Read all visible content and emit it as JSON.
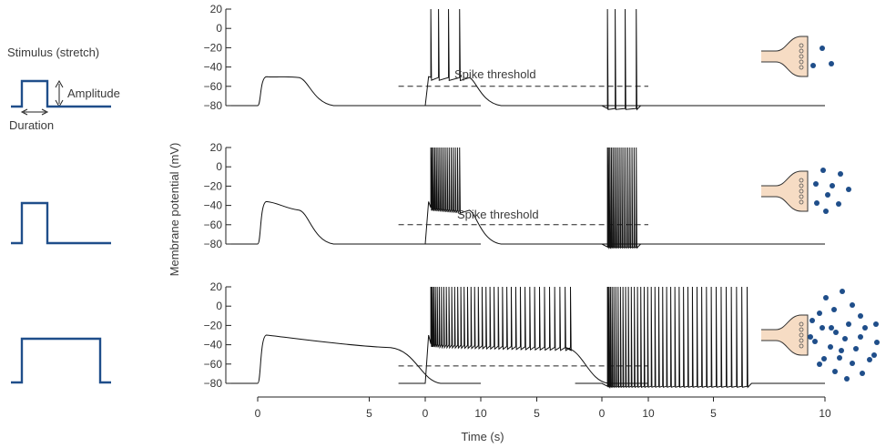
{
  "labels": {
    "stimulus": "Stimulus (stretch)",
    "amplitude": "Amplitude",
    "duration": "Duration",
    "ylabel": "Membrane potential (mV)",
    "xlabel": "Time (s)",
    "spike_threshold": "Spike threshold"
  },
  "axes": {
    "y_ticks": [
      "20",
      "0",
      "−20",
      "−40",
      "−60",
      "−80"
    ],
    "x_ticks": [
      "0",
      "5",
      "10"
    ]
  },
  "colors": {
    "stimulus": "#1f4e8a",
    "vesicle": "#1f4e8a",
    "terminal_fill": "#f6dcc4",
    "trace": "#111111"
  },
  "chart_data": {
    "type": "line",
    "xlabel": "Time (s)",
    "ylabel": "Membrane potential (mV)",
    "xlim": [
      0,
      10
    ],
    "ylim": [
      -80,
      20
    ],
    "rows": [
      {
        "stimulus_amplitude": "small",
        "stimulus_duration_s": 2.2,
        "receptor_potential_peak_mV": -50,
        "receptor_potential_plateau_mV": -51,
        "spike_count_trigger_zone": 4,
        "spike_count_terminal": 4,
        "transmitter_vesicles_released": 3,
        "spike_threshold_mV": -60
      },
      {
        "stimulus_amplitude": "medium",
        "stimulus_duration_s": 2.2,
        "receptor_potential_peak_mV": -36,
        "receptor_potential_plateau_mV": -45,
        "spike_count_trigger_zone": 17,
        "spike_count_terminal": 17,
        "transmitter_vesicles_released": 9,
        "spike_threshold_mV": -60
      },
      {
        "stimulus_amplitude": "large",
        "stimulus_duration_s": 7,
        "receptor_potential_peak_mV": -30,
        "receptor_potential_plateau_mV": -43,
        "spike_count_trigger_zone": 40,
        "spike_count_terminal": 40,
        "transmitter_vesicles_released": 30,
        "spike_threshold_mV": -62
      }
    ]
  }
}
